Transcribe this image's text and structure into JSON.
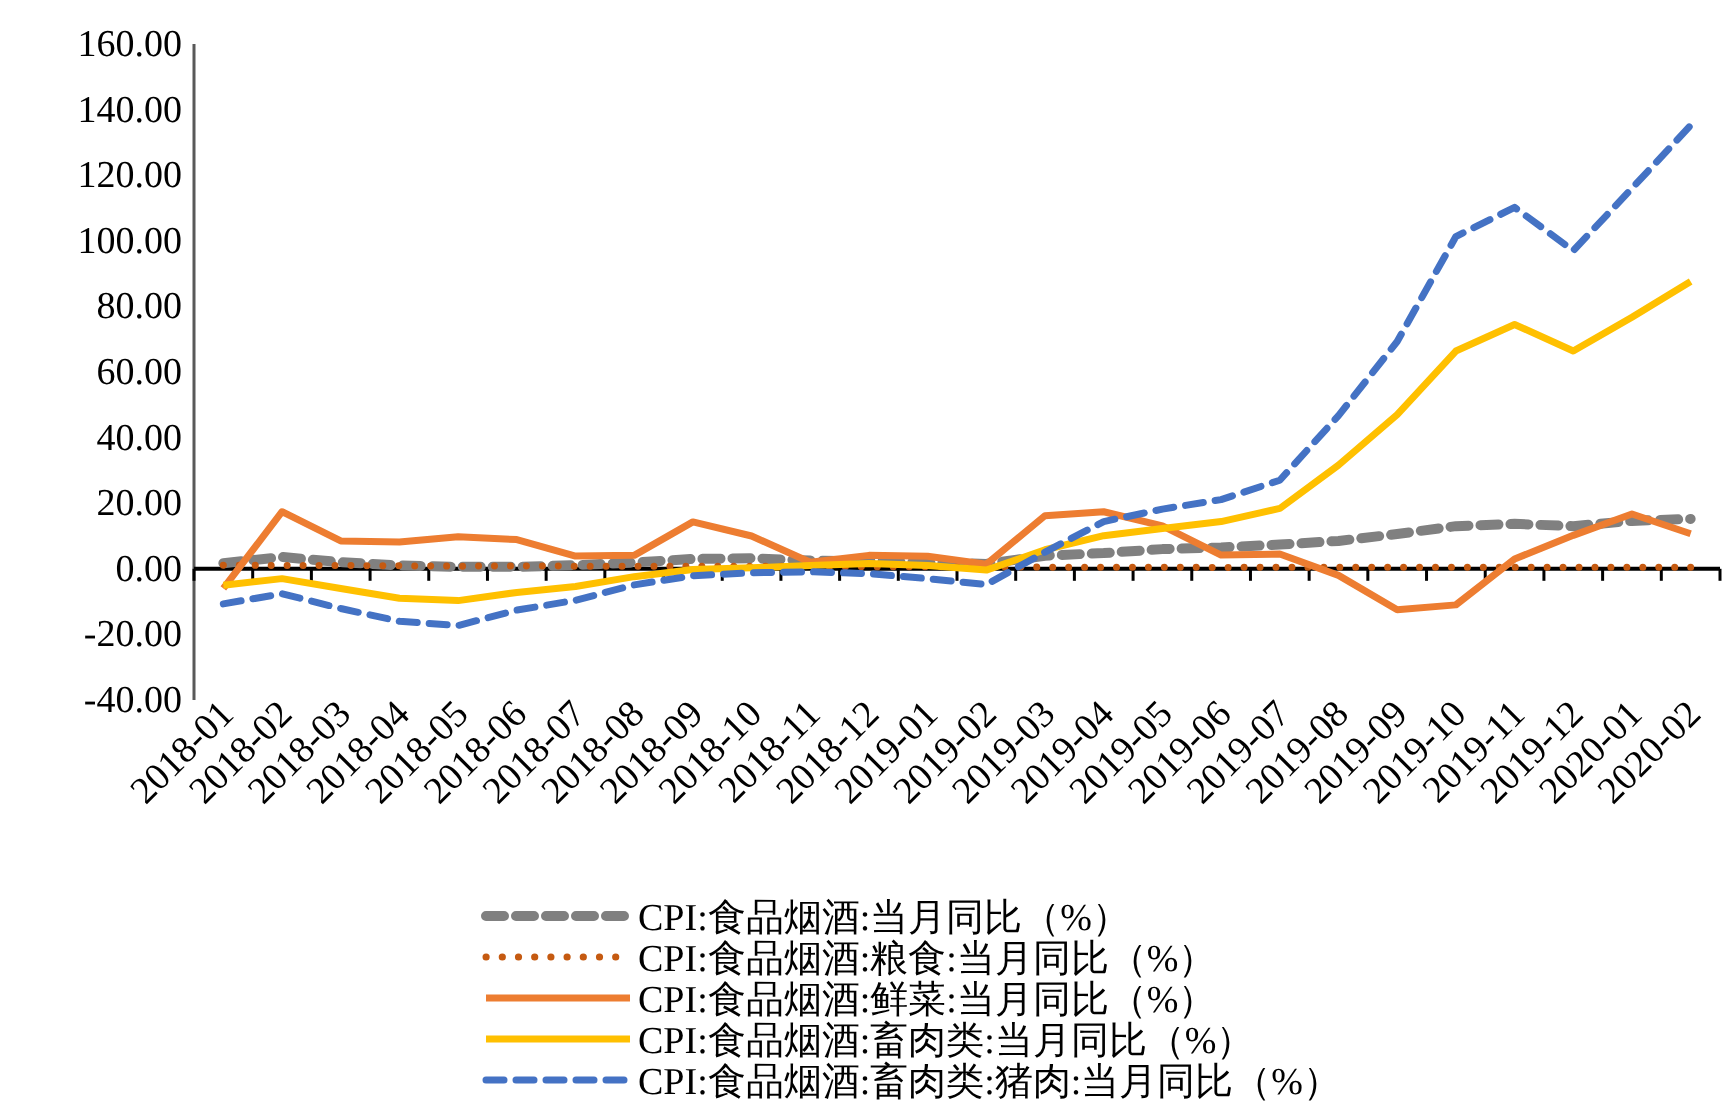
{
  "chart_data": {
    "type": "line",
    "categories": [
      "2018-01",
      "2018-02",
      "2018-03",
      "2018-04",
      "2018-05",
      "2018-06",
      "2018-07",
      "2018-08",
      "2018-09",
      "2018-10",
      "2018-11",
      "2018-12",
      "2019-01",
      "2019-02",
      "2019-03",
      "2019-04",
      "2019-05",
      "2019-06",
      "2019-07",
      "2019-08",
      "2019-09",
      "2019-10",
      "2019-11",
      "2019-12",
      "2020-01",
      "2020-02"
    ],
    "ylim": [
      -40,
      160
    ],
    "yticks": [
      {
        "value": -40,
        "label": "-40.00"
      },
      {
        "value": -20,
        "label": "-20.00"
      },
      {
        "value": 0,
        "label": "0.00"
      },
      {
        "value": 20,
        "label": "20.00"
      },
      {
        "value": 40,
        "label": "40.00"
      },
      {
        "value": 60,
        "label": "60.00"
      },
      {
        "value": 80,
        "label": "80.00"
      },
      {
        "value": 100,
        "label": "100.00"
      },
      {
        "value": 120,
        "label": "120.00"
      },
      {
        "value": 140,
        "label": "140.00"
      },
      {
        "value": 160,
        "label": "160.00"
      }
    ],
    "legend": "bottom",
    "marker": "none",
    "series": [
      {
        "name": "CPI:食品烟酒:当月同比（%）",
        "color": "#808080",
        "line_style": "dashed",
        "values": [
          1.7,
          3.6,
          2.0,
          1.0,
          0.6,
          0.6,
          1.1,
          1.9,
          3.0,
          3.2,
          2.5,
          2.3,
          1.9,
          1.5,
          4.0,
          4.8,
          6.0,
          6.5,
          7.4,
          8.5,
          10.6,
          13.0,
          13.7,
          13.0,
          14.6,
          15.2
        ]
      },
      {
        "name": "CPI:食品烟酒:粮食:当月同比（%）",
        "color": "#c55a11",
        "line_style": "dotted",
        "values": [
          1.1,
          1.0,
          1.0,
          0.9,
          0.8,
          0.9,
          0.8,
          0.8,
          0.8,
          0.8,
          0.7,
          0.6,
          0.6,
          0.6,
          0.5,
          0.5,
          0.5,
          0.4,
          0.5,
          0.5,
          0.5,
          0.5,
          0.5,
          0.5,
          0.5,
          0.5
        ]
      },
      {
        "name": "CPI:食品烟酒:鲜菜:当月同比（%）",
        "color": "#ed7d31",
        "line_style": "solid",
        "values": [
          -6.0,
          17.4,
          8.5,
          8.2,
          9.8,
          8.9,
          3.9,
          4.1,
          14.3,
          10.0,
          2.0,
          4.1,
          3.8,
          1.4,
          16.2,
          17.4,
          13.1,
          4.2,
          4.5,
          -2.0,
          -12.5,
          -11.0,
          3.0,
          10.2,
          16.7,
          10.7
        ]
      },
      {
        "name": "CPI:食品烟酒:畜肉类:当月同比（%）",
        "color": "#ffc000",
        "line_style": "solid",
        "values": [
          -5.0,
          -3.0,
          -6.0,
          -9.0,
          -9.7,
          -7.2,
          -5.4,
          -2.4,
          -0.2,
          0.3,
          1.0,
          1.6,
          1.0,
          -0.4,
          5.8,
          10.1,
          12.3,
          14.4,
          18.4,
          31.6,
          47.0,
          66.4,
          74.5,
          66.4,
          76.7,
          87.6
        ]
      },
      {
        "name": "CPI:食品烟酒:畜肉类:猪肉:当月同比（%）",
        "color": "#4472c4",
        "line_style": "dashed",
        "values": [
          -10.7,
          -7.6,
          -12.1,
          -16.0,
          -17.3,
          -12.6,
          -9.6,
          -4.9,
          -2.1,
          -1.2,
          -0.9,
          -1.5,
          -3.0,
          -4.8,
          5.1,
          14.4,
          18.2,
          21.1,
          27.0,
          46.7,
          69.3,
          101.3,
          110.2,
          97.0,
          116.0,
          135.2
        ]
      }
    ]
  }
}
